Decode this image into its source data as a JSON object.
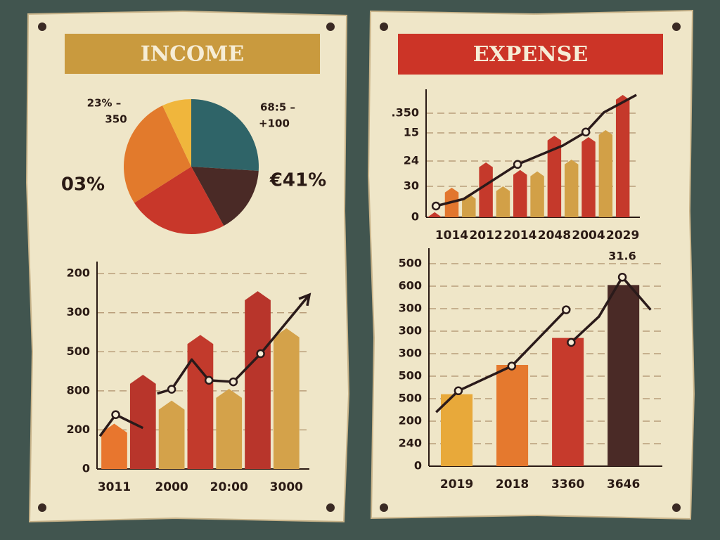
{
  "chart_data": [
    {
      "type": "pie",
      "title": "INCOME",
      "banner_color": "#c99a3e",
      "values": [
        26,
        16,
        24,
        27,
        7
      ],
      "colors": [
        "#2f6468",
        "#4a2a26",
        "#c8372a",
        "#e27a2c",
        "#f0b63c"
      ],
      "annotations": [
        "23% –",
        "350",
        "68:5 –",
        "+100",
        "03%",
        "€41%"
      ]
    },
    {
      "type": "combo",
      "xlim": [
        -0.1,
        7.3
      ],
      "ylim": [
        0,
        5.2
      ],
      "yticks": [
        0,
        {
          "value": 1,
          "label": "200"
        },
        {
          "value": 2,
          "label": "800"
        },
        {
          "value": 3,
          "label": "500"
        },
        {
          "value": 4,
          "label": "300"
        },
        {
          "value": 5,
          "label": "200"
        }
      ],
      "grid": true,
      "pointed_bars": true,
      "categories": [
        "3011",
        null,
        "2000",
        null,
        "20:00",
        null,
        "3000"
      ],
      "bars": {
        "values": [
          1.16,
          2.41,
          1.75,
          3.43,
          2.05,
          4.55,
          3.6
        ],
        "colors": [
          "#e8762e",
          "#b8352b",
          "#d4a24a",
          "#c23a2c",
          "#d4a24a",
          "#b8352b",
          "#d4a24a"
        ]
      },
      "line": {
        "x": [
          0,
          0.55,
          1.5,
          null,
          2,
          2.5,
          3.2,
          3.8,
          4.65,
          5.6,
          7.3
        ],
        "values": [
          0.84,
          1.39,
          1.05,
          null,
          1.93,
          2.04,
          2.8,
          2.27,
          2.23,
          2.95,
          4.46
        ],
        "color": "#2a1a1a",
        "arrow": true
      },
      "points": {
        "x": [
          0.55,
          2.5,
          3.8,
          4.65,
          5.6
        ],
        "values": [
          1.39,
          2.04,
          2.27,
          2.23,
          2.95
        ]
      }
    },
    {
      "type": "combo",
      "title": "EXPENSE",
      "banner_color": "#cc3427",
      "xlim": [
        0,
        12.5
      ],
      "ylim": [
        0,
        4.4
      ],
      "yticks": [
        0,
        {
          "value": 1.1,
          "label": "30"
        },
        {
          "value": 2,
          "label": "24"
        },
        {
          "value": 3,
          "label": "15"
        },
        {
          "value": 3.7,
          "label": ".350"
        }
      ],
      "grid": true,
      "pointed_bars": true,
      "categories": [
        null,
        "1014",
        null,
        "2012",
        null,
        "2014",
        null,
        "2048",
        null,
        "2004",
        null,
        "2029"
      ],
      "bars": {
        "values": [
          0.18,
          1.05,
          0.83,
          1.95,
          1.1,
          1.68,
          1.63,
          2.9,
          2.05,
          2.85,
          3.1,
          4.35
        ],
        "colors": [
          "#c5392b",
          "#e2762e",
          "#d2a047",
          "#c5392b",
          "#d2a047",
          "#c5392b",
          "#d2a047",
          "#c5392b",
          "#d2a047",
          "#c5392b",
          "#d2a047",
          "#c5392b"
        ]
      },
      "line": {
        "x": [
          0.58,
          2.2,
          5.35,
          8,
          9.34,
          10.4,
          12.3
        ],
        "values": [
          0.4,
          0.65,
          1.88,
          2.55,
          3.03,
          3.73,
          4.35
        ],
        "color": "#2a1a1a",
        "arrow": false
      },
      "points": {
        "x": [
          0.58,
          5.35,
          9.34
        ],
        "values": [
          0.4,
          1.88,
          3.03
        ]
      }
    },
    {
      "type": "combo",
      "xlim": [
        0,
        4.2
      ],
      "ylim": [
        0,
        9.5
      ],
      "yticks": [
        0,
        {
          "value": 1,
          "label": "240"
        },
        {
          "value": 2,
          "label": "200"
        },
        {
          "value": 3,
          "label": "500"
        },
        {
          "value": 4,
          "label": "500"
        },
        {
          "value": 5,
          "label": "300"
        },
        {
          "value": 6,
          "label": "300"
        },
        {
          "value": 7,
          "label": "300"
        },
        {
          "value": 8,
          "label": "600"
        },
        {
          "value": 9,
          "label": "500"
        }
      ],
      "grid": true,
      "pointed_bars": false,
      "categories": [
        "2019",
        "2018",
        "3360",
        "3646"
      ],
      "bars": {
        "values": [
          3.2,
          4.5,
          5.7,
          8.05
        ],
        "colors": [
          "#e8a93a",
          "#e5792e",
          "#c63a2c",
          "#4a2a26"
        ]
      },
      "line": {
        "x": [
          0.13,
          0.53,
          1.49,
          2.47,
          null,
          2.56,
          3.06,
          3.48,
          3.99
        ],
        "values": [
          2.4,
          3.35,
          4.45,
          6.95,
          null,
          5.5,
          6.65,
          8.4,
          6.95
        ],
        "color": "#2a1a1a",
        "arrow": false
      },
      "points": {
        "x": [
          0.53,
          1.49,
          2.47,
          2.56,
          3.48
        ],
        "values": [
          3.35,
          4.45,
          6.95,
          5.5,
          8.4
        ]
      },
      "annotations": [
        "31.6"
      ]
    }
  ]
}
